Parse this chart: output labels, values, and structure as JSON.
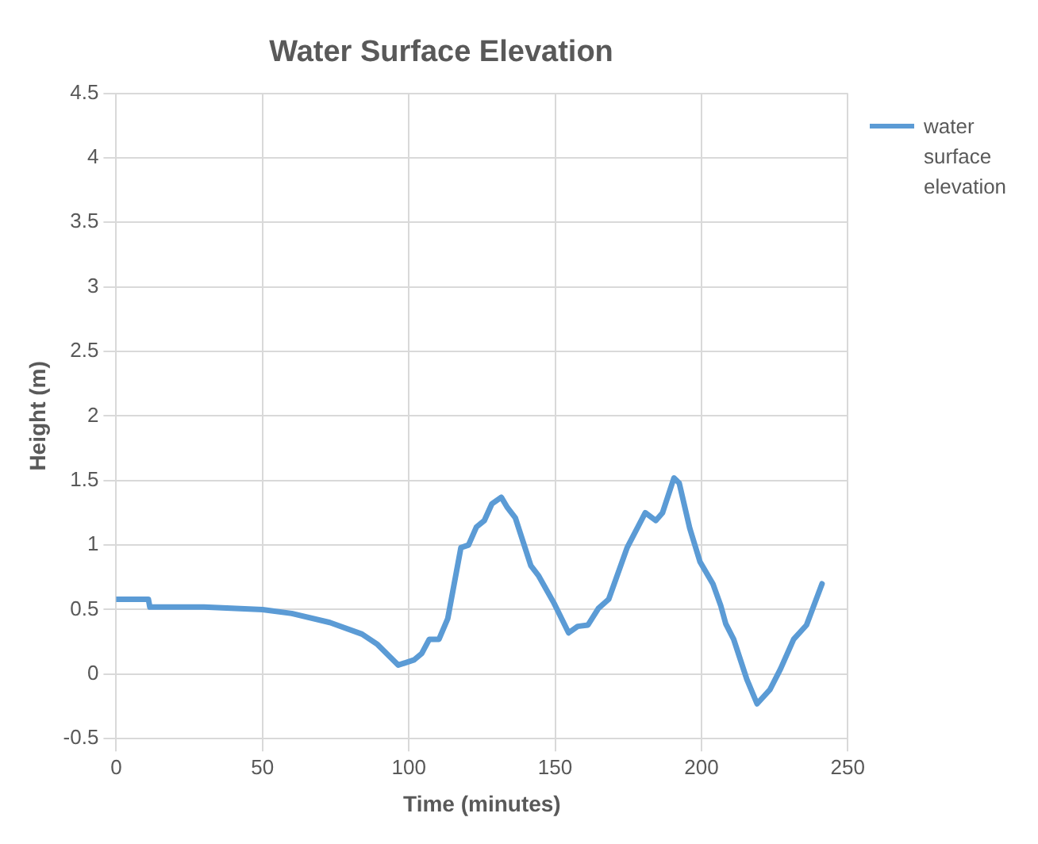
{
  "chart_data": {
    "type": "line",
    "title": "Water Surface Elevation",
    "xlabel": "Time (minutes)",
    "ylabel": "Height (m)",
    "x": [
      0,
      11,
      11.5,
      30,
      50,
      60,
      73,
      84,
      89.3,
      96.4,
      101.8,
      104.4,
      107,
      110.3,
      113.3,
      117.8,
      120.4,
      123.1,
      125.8,
      128.4,
      131.6,
      133.7,
      136.4,
      141.7,
      144.4,
      149.6,
      154.6,
      157.7,
      161.2,
      164.8,
      168.3,
      174.6,
      180.8,
      184.4,
      186.7,
      190.6,
      192.4,
      196,
      199.5,
      203.9,
      206.6,
      208.3,
      211,
      215.5,
      219,
      223.4,
      227,
      231.5,
      235.9,
      241.2
    ],
    "series": [
      {
        "name": "water surface elevation",
        "color": "#5b9bd5",
        "values": [
          0.58,
          0.58,
          0.52,
          0.52,
          0.5,
          0.47,
          0.4,
          0.31,
          0.23,
          0.07,
          0.11,
          0.16,
          0.27,
          0.27,
          0.43,
          0.98,
          1.0,
          1.14,
          1.19,
          1.32,
          1.37,
          1.29,
          1.21,
          0.84,
          0.76,
          0.55,
          0.32,
          0.37,
          0.38,
          0.51,
          0.58,
          0.98,
          1.25,
          1.19,
          1.25,
          1.52,
          1.48,
          1.13,
          0.87,
          0.7,
          0.53,
          0.39,
          0.27,
          -0.04,
          -0.23,
          -0.12,
          0.04,
          0.27,
          0.38,
          0.7
        ]
      }
    ],
    "xlim": [
      0,
      250
    ],
    "xticks": [
      0,
      50,
      100,
      150,
      200,
      250
    ],
    "ylim": [
      -0.5,
      4.5
    ],
    "yticks": [
      -0.5,
      0,
      0.5,
      1,
      1.5,
      2,
      2.5,
      3,
      3.5,
      4,
      4.5
    ],
    "grid": true,
    "legend": "right",
    "marker": "none",
    "line_style": "solid"
  }
}
